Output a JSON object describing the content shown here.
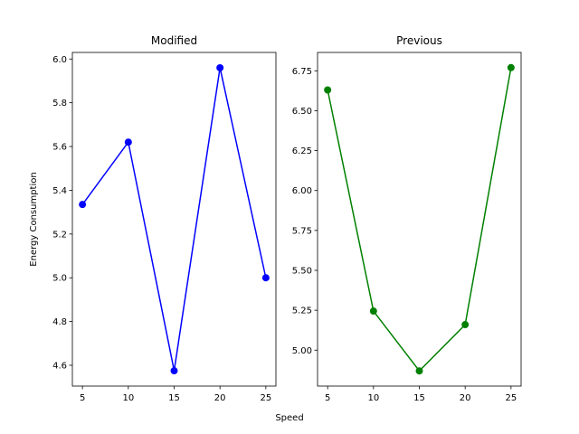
{
  "chart_data": {
    "shared_xlabel": "Speed",
    "charts": [
      {
        "type": "line",
        "title": "Modified",
        "ylabel": "Energy Consumption",
        "xlabel": "",
        "x": [
          5,
          10,
          15,
          20,
          25
        ],
        "series": [
          {
            "values": [
              5.335,
              5.62,
              4.575,
              5.96,
              5.0
            ],
            "color": "#0000ff",
            "marker": "circle"
          }
        ],
        "xlim": [
          3.9,
          26.1
        ],
        "ylim": [
          4.505,
          6.03
        ],
        "xticks": [
          5,
          10,
          15,
          20,
          25
        ],
        "yticks": [
          4.6,
          4.8,
          5.0,
          5.2,
          5.4,
          5.6,
          5.8,
          6.0
        ],
        "ytick_labels": [
          "4.6",
          "4.8",
          "5.0",
          "5.2",
          "5.4",
          "5.6",
          "5.8",
          "6.0"
        ],
        "grid": false
      },
      {
        "type": "line",
        "title": "Previous",
        "ylabel": "",
        "xlabel": "",
        "x": [
          5,
          10,
          15,
          20,
          25
        ],
        "series": [
          {
            "values": [
              6.63,
              5.245,
              4.87,
              5.16,
              6.77
            ],
            "color": "#008000",
            "marker": "circle"
          }
        ],
        "xlim": [
          3.9,
          26.1
        ],
        "ylim": [
          4.775,
          6.865
        ],
        "xticks": [
          5,
          10,
          15,
          20,
          25
        ],
        "yticks": [
          5.0,
          5.25,
          5.5,
          5.75,
          6.0,
          6.25,
          6.5,
          6.75
        ],
        "ytick_labels": [
          "5.00",
          "5.25",
          "5.50",
          "5.75",
          "6.00",
          "6.25",
          "6.50",
          "6.75"
        ],
        "grid": false
      }
    ]
  }
}
